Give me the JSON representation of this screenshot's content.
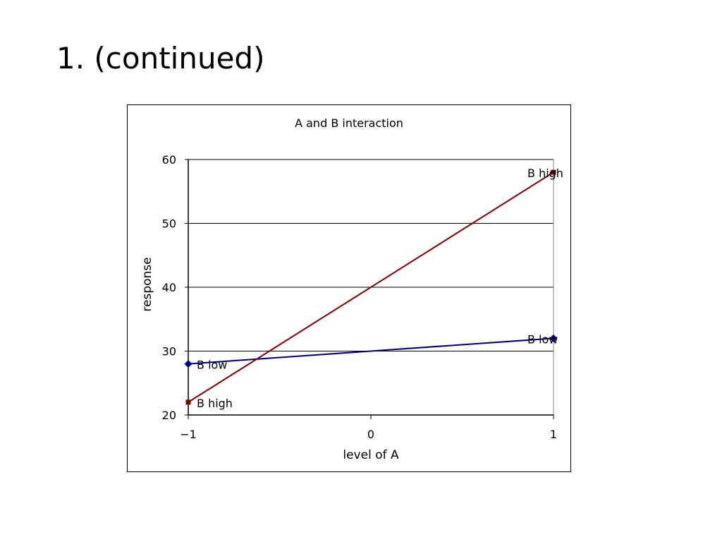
{
  "slide": {
    "title": "1. (continued)"
  },
  "chart_data": {
    "type": "line",
    "title": "A and B interaction",
    "xlabel": "level of A",
    "ylabel": "response",
    "x": [
      -1,
      1
    ],
    "x_ticks": [
      "−1",
      "0",
      "1"
    ],
    "x_tick_values": [
      -1,
      0,
      1
    ],
    "xlim": [
      -1,
      1
    ],
    "y_ticks": [
      "20",
      "30",
      "40",
      "50",
      "60"
    ],
    "y_tick_values": [
      20,
      30,
      40,
      50,
      60
    ],
    "ylim": [
      20,
      60
    ],
    "grid": "horizontal",
    "legend": "none",
    "series": [
      {
        "name": "B low",
        "values": [
          28,
          32
        ],
        "color": "#000080",
        "marker": "diamond",
        "point_labels": [
          "B low",
          "B low"
        ]
      },
      {
        "name": "B high",
        "values": [
          22,
          58
        ],
        "color": "#800000",
        "marker": "square",
        "point_labels": [
          "B high",
          "B high"
        ]
      }
    ]
  }
}
